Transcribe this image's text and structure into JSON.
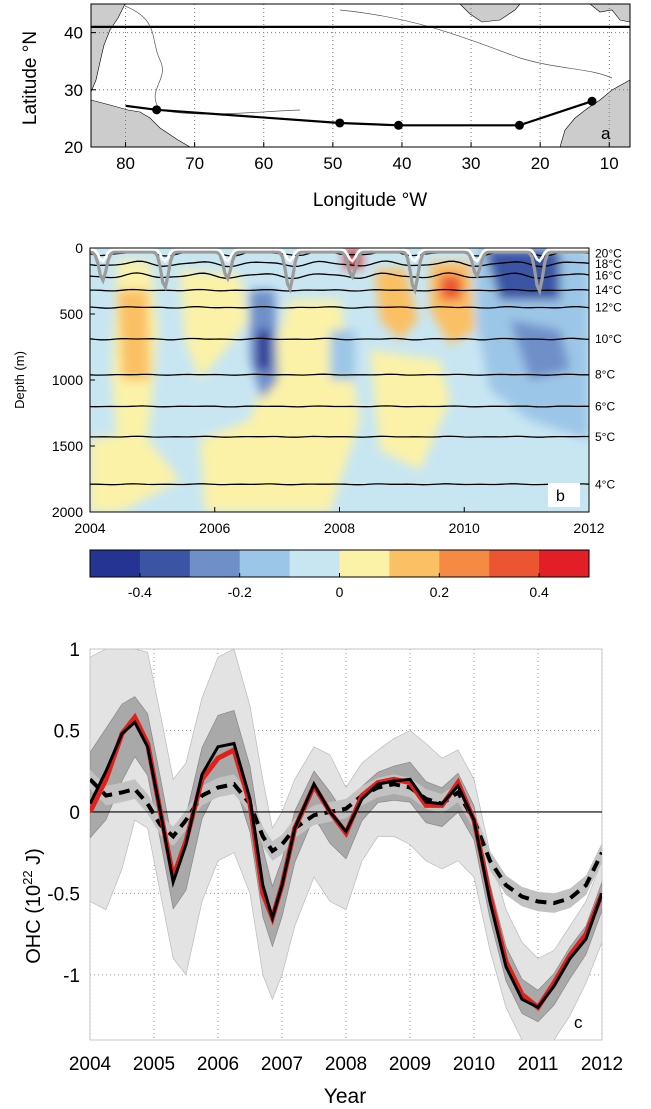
{
  "panel_a": {
    "label": "a",
    "xlabel": "Longitude °W",
    "ylabel": "Latitude °N",
    "xticks": [
      "80",
      "70",
      "60",
      "50",
      "40",
      "30",
      "20",
      "10"
    ],
    "yticks": [
      "40",
      "30",
      "20"
    ]
  },
  "panel_b": {
    "label": "b",
    "ylabel": "Depth (m)",
    "yticks": [
      "0",
      "500",
      "1000",
      "1500",
      "2000"
    ],
    "xticks": [
      "2004",
      "2006",
      "2008",
      "2010",
      "2012"
    ],
    "isotherms": [
      "20°C",
      "18°C",
      "16°C",
      "14°C",
      "12°C",
      "10°C",
      "8°C",
      "6°C",
      "5°C",
      "4°C"
    ],
    "colorbar_ticks": [
      "-0.4",
      "-0.2",
      "0",
      "0.2",
      "0.4"
    ],
    "colorbar_colors": [
      "#253393",
      "#3b54a4",
      "#6f8fc9",
      "#9cc6e7",
      "#c8e6f2",
      "#fbf2a8",
      "#fbc064",
      "#f58a45",
      "#ec5532",
      "#e21f26"
    ]
  },
  "panel_c": {
    "label": "c",
    "xlabel": "Year",
    "ylabel_main": "OHC (10",
    "ylabel_sup": "22",
    "ylabel_end": " J)",
    "xticks": [
      "2004",
      "2005",
      "2006",
      "2007",
      "2008",
      "2009",
      "2010",
      "2011",
      "2012"
    ],
    "yticks": [
      "1",
      "0.5",
      "0",
      "-0.5",
      "-1"
    ]
  },
  "chart_data": [
    {
      "type": "line",
      "panel": "a",
      "xlabel": "Longitude °W",
      "ylabel": "Latitude °N",
      "xlim": [
        85,
        7
      ],
      "ylim": [
        20,
        45
      ],
      "series": [
        {
          "x": [
            85,
            7
          ],
          "y": [
            41,
            41
          ]
        },
        {
          "x": [
            80,
            75.5,
            49,
            40.5,
            23,
            12.5
          ],
          "y": [
            27.2,
            26.5,
            24.2,
            23.8,
            23.8,
            28
          ]
        }
      ],
      "grid": true
    },
    {
      "type": "heatmap",
      "panel": "b",
      "ylabel": "Depth (m)",
      "xlim": [
        2004,
        2012
      ],
      "ylim": [
        2000,
        0
      ],
      "colorbar_range": [
        -0.5,
        0.5
      ],
      "isotherms": [
        {
          "label": "20°C",
          "depth": 40
        },
        {
          "label": "18°C",
          "depth": 120
        },
        {
          "label": "16°C",
          "depth": 210
        },
        {
          "label": "14°C",
          "depth": 320
        },
        {
          "label": "12°C",
          "depth": 450
        },
        {
          "label": "10°C",
          "depth": 690
        },
        {
          "label": "8°C",
          "depth": 960
        },
        {
          "label": "6°C",
          "depth": 1200
        },
        {
          "label": "5°C",
          "depth": 1430
        },
        {
          "label": "4°C",
          "depth": 1790
        }
      ]
    },
    {
      "type": "line",
      "panel": "c",
      "xlabel": "Year",
      "ylabel": "OHC (10^22 J)",
      "xlim": [
        2004,
        2012
      ],
      "ylim": [
        -1.4,
        1.0
      ],
      "x": [
        2004.0,
        2004.25,
        2004.5,
        2004.7,
        2004.9,
        2005.1,
        2005.3,
        2005.5,
        2005.75,
        2006.0,
        2006.25,
        2006.5,
        2006.7,
        2006.85,
        2007.0,
        2007.2,
        2007.5,
        2007.75,
        2008.0,
        2008.25,
        2008.5,
        2008.75,
        2009.0,
        2009.25,
        2009.5,
        2009.75,
        2010.0,
        2010.25,
        2010.5,
        2010.75,
        2011.0,
        2011.25,
        2011.5,
        2011.75,
        2012.0
      ],
      "series": [
        {
          "values": [
            0.0,
            0.2,
            0.48,
            0.58,
            0.42,
            0.0,
            -0.4,
            -0.18,
            0.2,
            0.33,
            0.38,
            0.05,
            -0.5,
            -0.65,
            -0.45,
            -0.1,
            0.16,
            0.0,
            -0.13,
            0.1,
            0.18,
            0.2,
            0.18,
            0.04,
            0.04,
            0.18,
            -0.05,
            -0.52,
            -0.92,
            -1.12,
            -1.2,
            -1.05,
            -0.88,
            -0.75,
            -0.5
          ],
          "color": "#e0201a"
        },
        {
          "values": [
            0.05,
            0.25,
            0.48,
            0.55,
            0.4,
            0.0,
            -0.43,
            -0.2,
            0.23,
            0.4,
            0.42,
            0.08,
            -0.45,
            -0.65,
            -0.45,
            -0.1,
            0.17,
            0.0,
            -0.12,
            0.08,
            0.17,
            0.19,
            0.2,
            0.06,
            0.05,
            0.16,
            -0.05,
            -0.55,
            -0.95,
            -1.15,
            -1.2,
            -1.07,
            -0.9,
            -0.78,
            -0.5
          ],
          "color": "#000000"
        },
        {
          "values": [
            0.2,
            0.1,
            0.12,
            0.14,
            0.05,
            -0.08,
            -0.15,
            -0.05,
            0.1,
            0.15,
            0.17,
            0.05,
            -0.15,
            -0.24,
            -0.2,
            -0.1,
            -0.02,
            0.0,
            0.02,
            0.1,
            0.15,
            0.17,
            0.15,
            0.08,
            0.05,
            0.12,
            -0.05,
            -0.3,
            -0.45,
            -0.52,
            -0.55,
            -0.56,
            -0.53,
            -0.45,
            -0.25
          ],
          "color": "#000000",
          "dash": true
        },
        {
          "values": [
            0.95,
            1.0,
            1.0,
            1.0,
            0.98,
            0.6,
            0.2,
            0.3,
            0.7,
            0.95,
            1.0,
            0.65,
            0.2,
            -0.1,
            0.0,
            0.2,
            0.4,
            0.35,
            0.15,
            0.3,
            0.38,
            0.45,
            0.5,
            0.42,
            0.33,
            0.38,
            0.2,
            -0.25,
            -0.6,
            -0.8,
            -0.9,
            -0.85,
            -0.7,
            -0.55,
            -0.3
          ],
          "band": "outer-upper"
        },
        {
          "values": [
            -0.55,
            -0.6,
            -0.35,
            -0.05,
            -0.1,
            -0.5,
            -0.9,
            -1.0,
            -0.55,
            -0.3,
            -0.25,
            -0.5,
            -1.0,
            -1.15,
            -1.0,
            -0.7,
            -0.4,
            -0.55,
            -0.6,
            -0.3,
            -0.15,
            -0.15,
            -0.2,
            -0.3,
            -0.35,
            -0.3,
            -0.4,
            -0.85,
            -1.2,
            -1.4,
            -1.45,
            -1.4,
            -1.25,
            -1.05,
            -0.8
          ],
          "band": "outer-lower"
        }
      ],
      "grid": true
    }
  ]
}
